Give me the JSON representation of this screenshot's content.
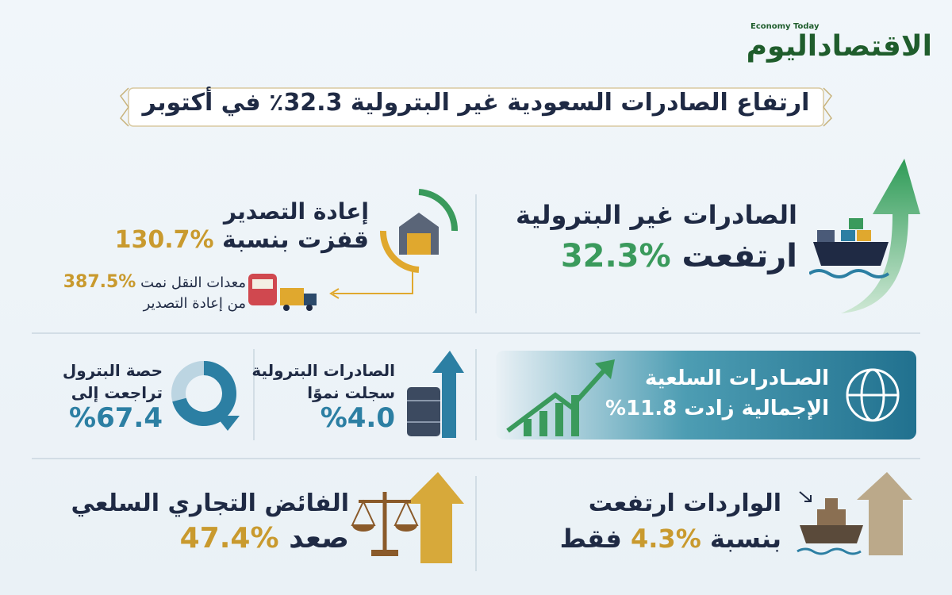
{
  "logo": {
    "arabic": "الاقتصاداليوم",
    "english": "Economy Today"
  },
  "title": "ارتفاع الصادرات السعودية غير البترولية 32.3٪ في أكتوبر",
  "non_oil_exports": {
    "heading": "الصادرات غير البترولية",
    "verb": "ارتفعت",
    "percent": "%32.3"
  },
  "re_exports": {
    "heading": "إعادة التصدير",
    "verb": "قفزت بنسبة",
    "percent": "%130.7",
    "note_line1": "معدات النقل نمت",
    "note_percent": "%387.5",
    "note_line2": "من إعادة التصدير"
  },
  "merchandise_exports": {
    "line1": "الصـادرات السلعية",
    "line2": "الإجمالية زادت 11.8%"
  },
  "oil_exports": {
    "line1": "الصادرات البترولية",
    "line2": "سجلت نموًا",
    "percent": "%4.0"
  },
  "oil_share": {
    "line1": "حصة البترول",
    "line2": "تراجعت إلى",
    "percent": "%67.4"
  },
  "imports": {
    "line1": "الواردات ارتفعت",
    "prefix": "بنسبة",
    "percent": "%4.3",
    "suffix": "فقط"
  },
  "trade_surplus": {
    "line1": "الفائض التجاري السلعي",
    "verb": "صعد",
    "percent": "%47.4"
  }
}
